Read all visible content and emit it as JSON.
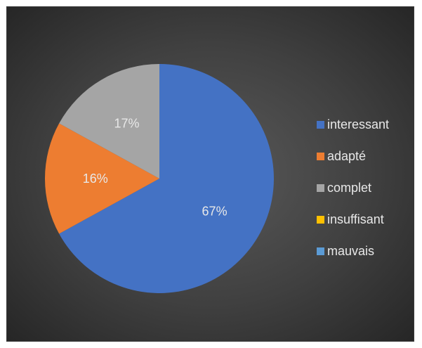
{
  "chart_data": {
    "type": "pie",
    "categories": [
      "interessant",
      "adapté",
      "complet",
      "insuffisant",
      "mauvais"
    ],
    "values": [
      67,
      16,
      17,
      0,
      0
    ],
    "labels": [
      "67%",
      "16%",
      "17%",
      "",
      ""
    ],
    "colors": [
      "#4472C4",
      "#ED7D31",
      "#A5A5A5",
      "#FFC000",
      "#5B9BD5"
    ],
    "legend_position": "right",
    "start_angle_deg": 0,
    "direction": "clockwise"
  }
}
